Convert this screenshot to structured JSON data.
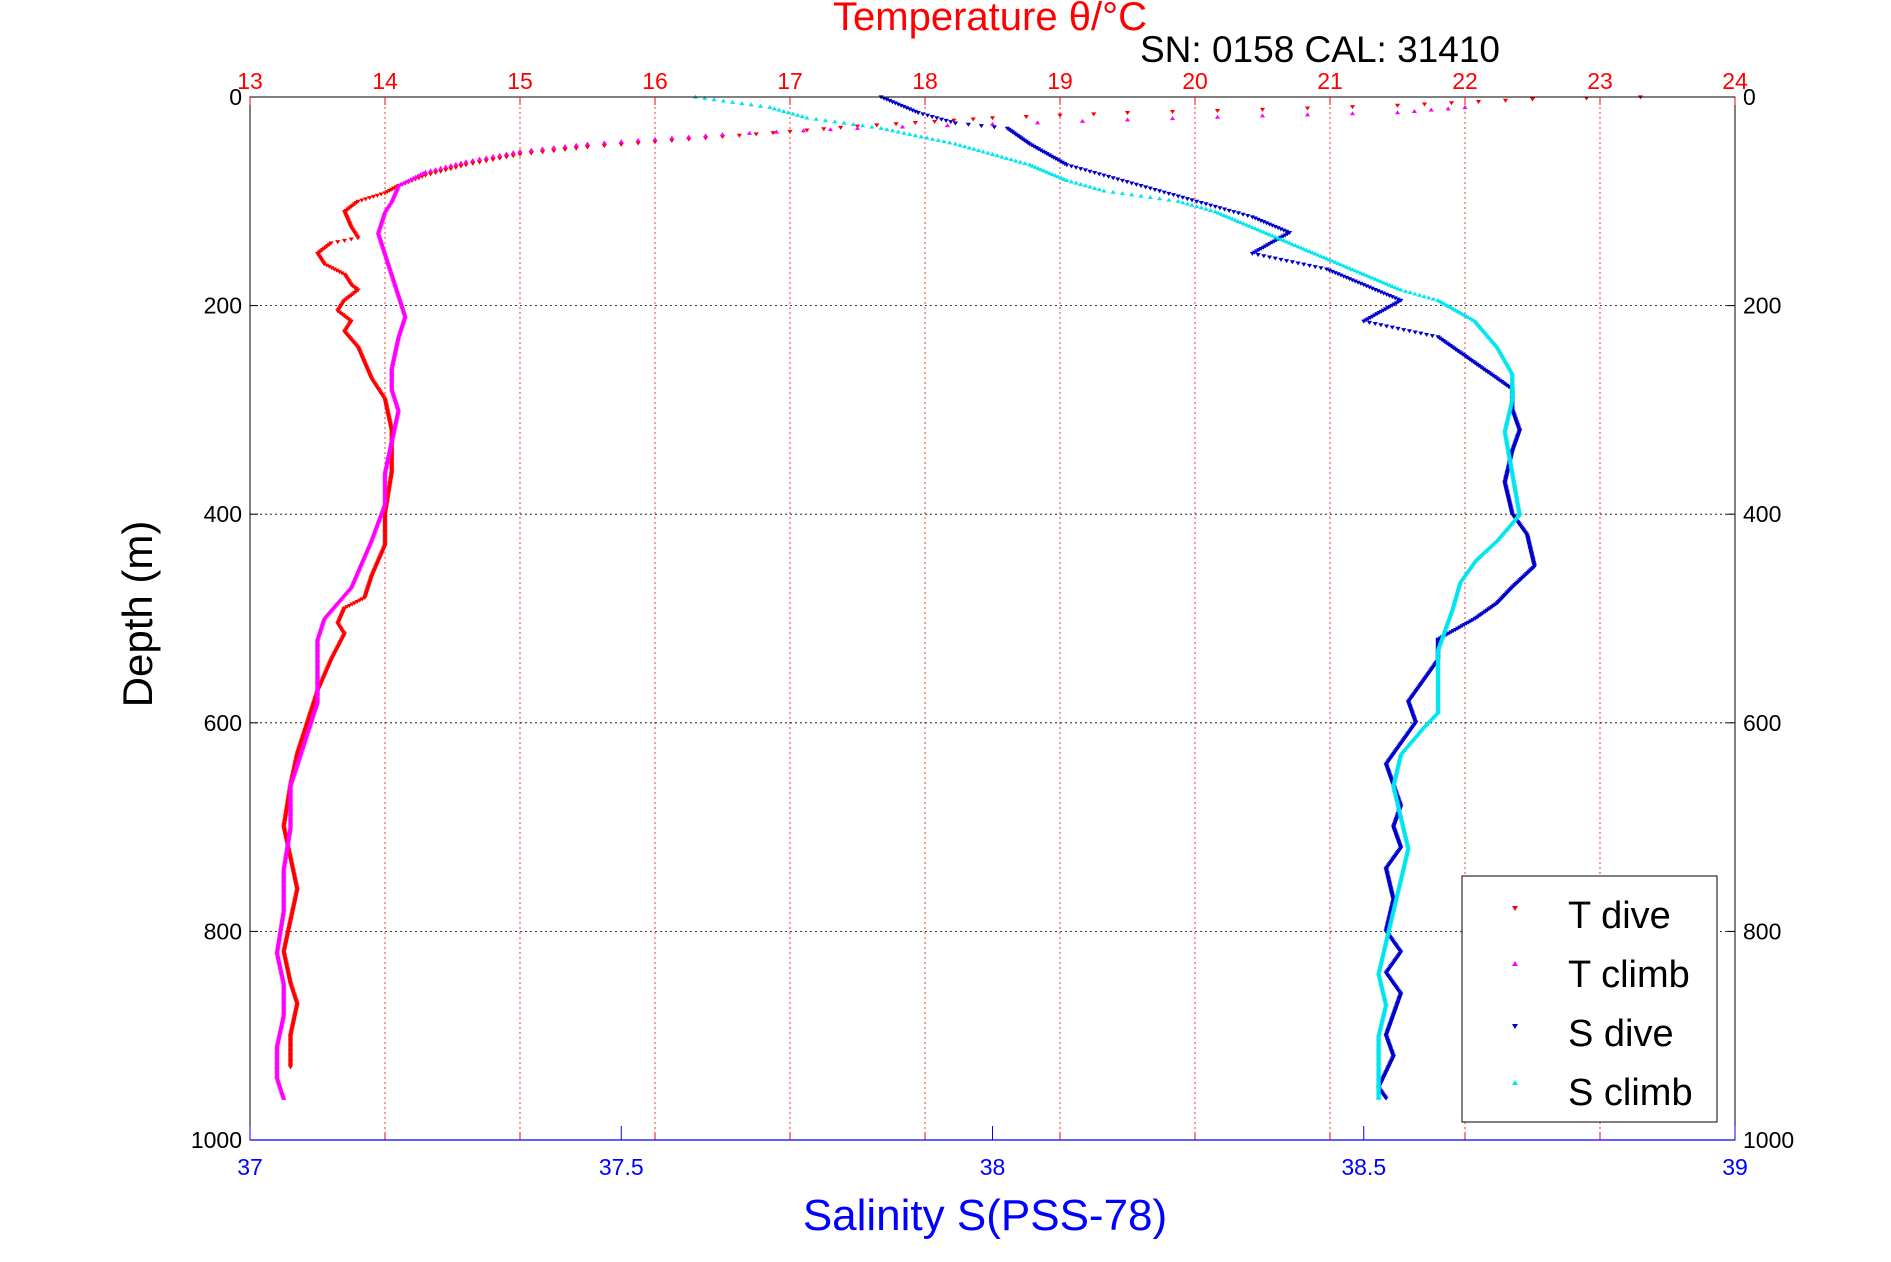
{
  "header": {
    "top_title": "Temperature θ/°C",
    "sn_cal": "SN: 0158  CAL: 31410"
  },
  "axes": {
    "ylabel": "Depth (m)",
    "xlabel_bottom": "Salinity S(PSS-78)"
  },
  "legend": {
    "items": [
      {
        "label": "T dive",
        "color": "#ff0000"
      },
      {
        "label": "T climb",
        "color": "#ff00ff"
      },
      {
        "label": "S dive",
        "color": "#0000cc"
      },
      {
        "label": "S climb",
        "color": "#00e5ee"
      }
    ]
  },
  "colors": {
    "temperature_axis": "#ff0000",
    "salinity_axis": "#0000ff",
    "grid_temperature": "#ff0000",
    "grid_depth": "#000000"
  },
  "chart_data": {
    "type": "scatter",
    "title": "Temperature θ/°C",
    "ylabel": "Depth (m)",
    "xlabel": "Salinity S(PSS-78)",
    "depth_range": [
      0,
      1000
    ],
    "depth_reversed": true,
    "temperature_range": [
      13,
      24
    ],
    "salinity_range": [
      37,
      39
    ],
    "depth_ticks": [
      0,
      200,
      400,
      600,
      800,
      1000
    ],
    "temperature_ticks": [
      13,
      14,
      15,
      16,
      17,
      18,
      19,
      20,
      21,
      22,
      23,
      24
    ],
    "salinity_ticks": [
      37,
      37.5,
      38,
      38.5,
      39
    ],
    "salinity_tick_labels": [
      "37",
      "37.5",
      "38",
      "38.5",
      "39"
    ],
    "grid": true,
    "legend_position": "bottom-right",
    "series": [
      {
        "name": "T dive",
        "axis": "temperature",
        "marker": "triangle-down",
        "color": "#ff0000",
        "points": [
          [
            23.3,
            0
          ],
          [
            22.5,
            2
          ],
          [
            21.5,
            8
          ],
          [
            20.5,
            12
          ],
          [
            19.5,
            15
          ],
          [
            18.5,
            20
          ],
          [
            17.5,
            28
          ],
          [
            16.5,
            38
          ],
          [
            15.5,
            48
          ],
          [
            15,
            55
          ],
          [
            14.6,
            65
          ],
          [
            14.3,
            75
          ],
          [
            14.1,
            85
          ],
          [
            14,
            92
          ],
          [
            13.8,
            100
          ],
          [
            13.7,
            110
          ],
          [
            13.75,
            125
          ],
          [
            13.8,
            135
          ],
          [
            13.6,
            140
          ],
          [
            13.5,
            150
          ],
          [
            13.55,
            160
          ],
          [
            13.7,
            170
          ],
          [
            13.75,
            180
          ],
          [
            13.8,
            185
          ],
          [
            13.7,
            195
          ],
          [
            13.65,
            205
          ],
          [
            13.75,
            215
          ],
          [
            13.7,
            225
          ],
          [
            13.8,
            240
          ],
          [
            13.85,
            255
          ],
          [
            13.9,
            270
          ],
          [
            14,
            290
          ],
          [
            14.05,
            320
          ],
          [
            14.05,
            360
          ],
          [
            14,
            400
          ],
          [
            14,
            430
          ],
          [
            13.95,
            445
          ],
          [
            13.9,
            460
          ],
          [
            13.85,
            480
          ],
          [
            13.7,
            490
          ],
          [
            13.65,
            505
          ],
          [
            13.7,
            515
          ],
          [
            13.6,
            540
          ],
          [
            13.5,
            570
          ],
          [
            13.45,
            590
          ],
          [
            13.4,
            610
          ],
          [
            13.35,
            630
          ],
          [
            13.3,
            660
          ],
          [
            13.25,
            700
          ],
          [
            13.3,
            730
          ],
          [
            13.35,
            760
          ],
          [
            13.3,
            790
          ],
          [
            13.25,
            820
          ],
          [
            13.3,
            850
          ],
          [
            13.35,
            870
          ],
          [
            13.3,
            900
          ],
          [
            13.3,
            930
          ]
        ]
      },
      {
        "name": "T climb",
        "axis": "temperature",
        "marker": "triangle-up",
        "color": "#ff00ff",
        "points": [
          [
            22,
            10
          ],
          [
            21.5,
            15
          ],
          [
            20.5,
            18
          ],
          [
            19.5,
            22
          ],
          [
            18.5,
            26
          ],
          [
            17.5,
            30
          ],
          [
            16.5,
            36
          ],
          [
            15.5,
            45
          ],
          [
            15,
            52
          ],
          [
            14.6,
            62
          ],
          [
            14.3,
            72
          ],
          [
            14.1,
            85
          ],
          [
            14.05,
            100
          ],
          [
            14,
            110
          ],
          [
            13.95,
            130
          ],
          [
            14,
            150
          ],
          [
            14.05,
            170
          ],
          [
            14.1,
            190
          ],
          [
            14.15,
            210
          ],
          [
            14.1,
            230
          ],
          [
            14.05,
            260
          ],
          [
            14.05,
            280
          ],
          [
            14.1,
            300
          ],
          [
            14.05,
            330
          ],
          [
            14,
            360
          ],
          [
            14,
            390
          ],
          [
            13.9,
            425
          ],
          [
            13.85,
            440
          ],
          [
            13.8,
            455
          ],
          [
            13.75,
            470
          ],
          [
            13.65,
            485
          ],
          [
            13.55,
            500
          ],
          [
            13.5,
            520
          ],
          [
            13.5,
            540
          ],
          [
            13.5,
            560
          ],
          [
            13.5,
            580
          ],
          [
            13.45,
            600
          ],
          [
            13.4,
            620
          ],
          [
            13.35,
            640
          ],
          [
            13.3,
            660
          ],
          [
            13.3,
            700
          ],
          [
            13.25,
            740
          ],
          [
            13.25,
            780
          ],
          [
            13.2,
            820
          ],
          [
            13.25,
            850
          ],
          [
            13.25,
            880
          ],
          [
            13.2,
            910
          ],
          [
            13.2,
            940
          ],
          [
            13.25,
            960
          ]
        ]
      },
      {
        "name": "S dive",
        "axis": "salinity",
        "marker": "triangle-down",
        "color": "#0000cc",
        "points": [
          [
            37.85,
            0
          ],
          [
            37.9,
            15
          ],
          [
            37.95,
            25
          ],
          [
            38.02,
            30
          ],
          [
            38.05,
            45
          ],
          [
            38.1,
            65
          ],
          [
            38.15,
            75
          ],
          [
            38.2,
            85
          ],
          [
            38.25,
            95
          ],
          [
            38.3,
            105
          ],
          [
            38.35,
            115
          ],
          [
            38.4,
            130
          ],
          [
            38.35,
            150
          ],
          [
            38.45,
            165
          ],
          [
            38.5,
            180
          ],
          [
            38.55,
            195
          ],
          [
            38.5,
            215
          ],
          [
            38.6,
            230
          ],
          [
            38.65,
            255
          ],
          [
            38.7,
            280
          ],
          [
            38.7,
            300
          ],
          [
            38.71,
            320
          ],
          [
            38.7,
            340
          ],
          [
            38.69,
            370
          ],
          [
            38.7,
            400
          ],
          [
            38.72,
            420
          ],
          [
            38.73,
            450
          ],
          [
            38.7,
            470
          ],
          [
            38.68,
            485
          ],
          [
            38.65,
            500
          ],
          [
            38.6,
            520
          ],
          [
            38.6,
            540
          ],
          [
            38.58,
            560
          ],
          [
            38.56,
            580
          ],
          [
            38.57,
            600
          ],
          [
            38.55,
            620
          ],
          [
            38.53,
            640
          ],
          [
            38.54,
            660
          ],
          [
            38.55,
            680
          ],
          [
            38.54,
            700
          ],
          [
            38.55,
            720
          ],
          [
            38.53,
            740
          ],
          [
            38.54,
            770
          ],
          [
            38.53,
            800
          ],
          [
            38.55,
            820
          ],
          [
            38.53,
            840
          ],
          [
            38.55,
            860
          ],
          [
            38.54,
            880
          ],
          [
            38.53,
            900
          ],
          [
            38.54,
            920
          ],
          [
            38.52,
            950
          ],
          [
            38.53,
            960
          ]
        ]
      },
      {
        "name": "S climb",
        "axis": "salinity",
        "marker": "triangle-up",
        "color": "#00e5ee",
        "points": [
          [
            37.6,
            0
          ],
          [
            37.7,
            10
          ],
          [
            37.75,
            20
          ],
          [
            37.85,
            30
          ],
          [
            37.95,
            45
          ],
          [
            38,
            55
          ],
          [
            38.05,
            65
          ],
          [
            38.1,
            80
          ],
          [
            38.15,
            90
          ],
          [
            38.25,
            100
          ],
          [
            38.3,
            110
          ],
          [
            38.35,
            125
          ],
          [
            38.4,
            140
          ],
          [
            38.45,
            155
          ],
          [
            38.5,
            170
          ],
          [
            38.55,
            185
          ],
          [
            38.6,
            195
          ],
          [
            38.65,
            215
          ],
          [
            38.68,
            240
          ],
          [
            38.7,
            265
          ],
          [
            38.7,
            290
          ],
          [
            38.69,
            320
          ],
          [
            38.7,
            360
          ],
          [
            38.71,
            400
          ],
          [
            38.68,
            425
          ],
          [
            38.65,
            445
          ],
          [
            38.63,
            465
          ],
          [
            38.62,
            490
          ],
          [
            38.61,
            510
          ],
          [
            38.6,
            530
          ],
          [
            38.6,
            550
          ],
          [
            38.6,
            570
          ],
          [
            38.6,
            590
          ],
          [
            38.58,
            605
          ],
          [
            38.55,
            630
          ],
          [
            38.54,
            660
          ],
          [
            38.55,
            690
          ],
          [
            38.56,
            720
          ],
          [
            38.55,
            750
          ],
          [
            38.54,
            780
          ],
          [
            38.53,
            810
          ],
          [
            38.52,
            840
          ],
          [
            38.53,
            870
          ],
          [
            38.52,
            900
          ],
          [
            38.52,
            930
          ],
          [
            38.52,
            960
          ]
        ]
      }
    ]
  }
}
